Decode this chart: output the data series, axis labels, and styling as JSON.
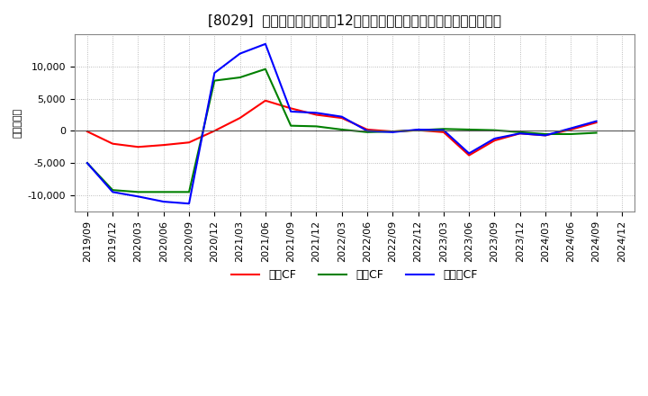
{
  "title": "[8029]  キャッシュフローの12か月移動合計の対前年同期増減額の推移",
  "ylabel": "（百万円）",
  "background_color": "#ffffff",
  "plot_bg_color": "#ffffff",
  "grid_color": "#aaaaaa",
  "x_labels": [
    "2019/09",
    "2019/12",
    "2020/03",
    "2020/06",
    "2020/09",
    "2020/12",
    "2021/03",
    "2021/06",
    "2021/09",
    "2021/12",
    "2022/03",
    "2022/06",
    "2022/09",
    "2022/12",
    "2023/03",
    "2023/06",
    "2023/09",
    "2023/12",
    "2024/03",
    "2024/06",
    "2024/09",
    "2024/12"
  ],
  "operating_cf": [
    -100,
    -2000,
    -2500,
    -2200,
    -1800,
    0,
    2000,
    4700,
    3500,
    2500,
    2000,
    200,
    -100,
    100,
    -200,
    -3800,
    -1500,
    -400,
    -700,
    200,
    1300,
    null
  ],
  "investing_cf": [
    -5000,
    -9200,
    -9500,
    -9500,
    -9500,
    7800,
    8300,
    9600,
    800,
    700,
    200,
    -200,
    -100,
    100,
    300,
    200,
    100,
    -200,
    -500,
    -500,
    -300,
    null
  ],
  "free_cf": [
    -5000,
    -9500,
    -10200,
    -11000,
    -11300,
    9000,
    12000,
    13500,
    3000,
    2800,
    2200,
    0,
    -200,
    200,
    100,
    -3500,
    -1200,
    -400,
    -700,
    400,
    1500,
    null
  ],
  "operating_color": "#ff0000",
  "investing_color": "#008000",
  "free_color": "#0000ff",
  "ylim": [
    -12500,
    15000
  ],
  "yticks": [
    -10000,
    -5000,
    0,
    5000,
    10000
  ],
  "legend_labels": [
    "営業CF",
    "投資CF",
    "フリーCF"
  ],
  "title_fontsize": 11,
  "axis_fontsize": 8,
  "legend_fontsize": 9
}
